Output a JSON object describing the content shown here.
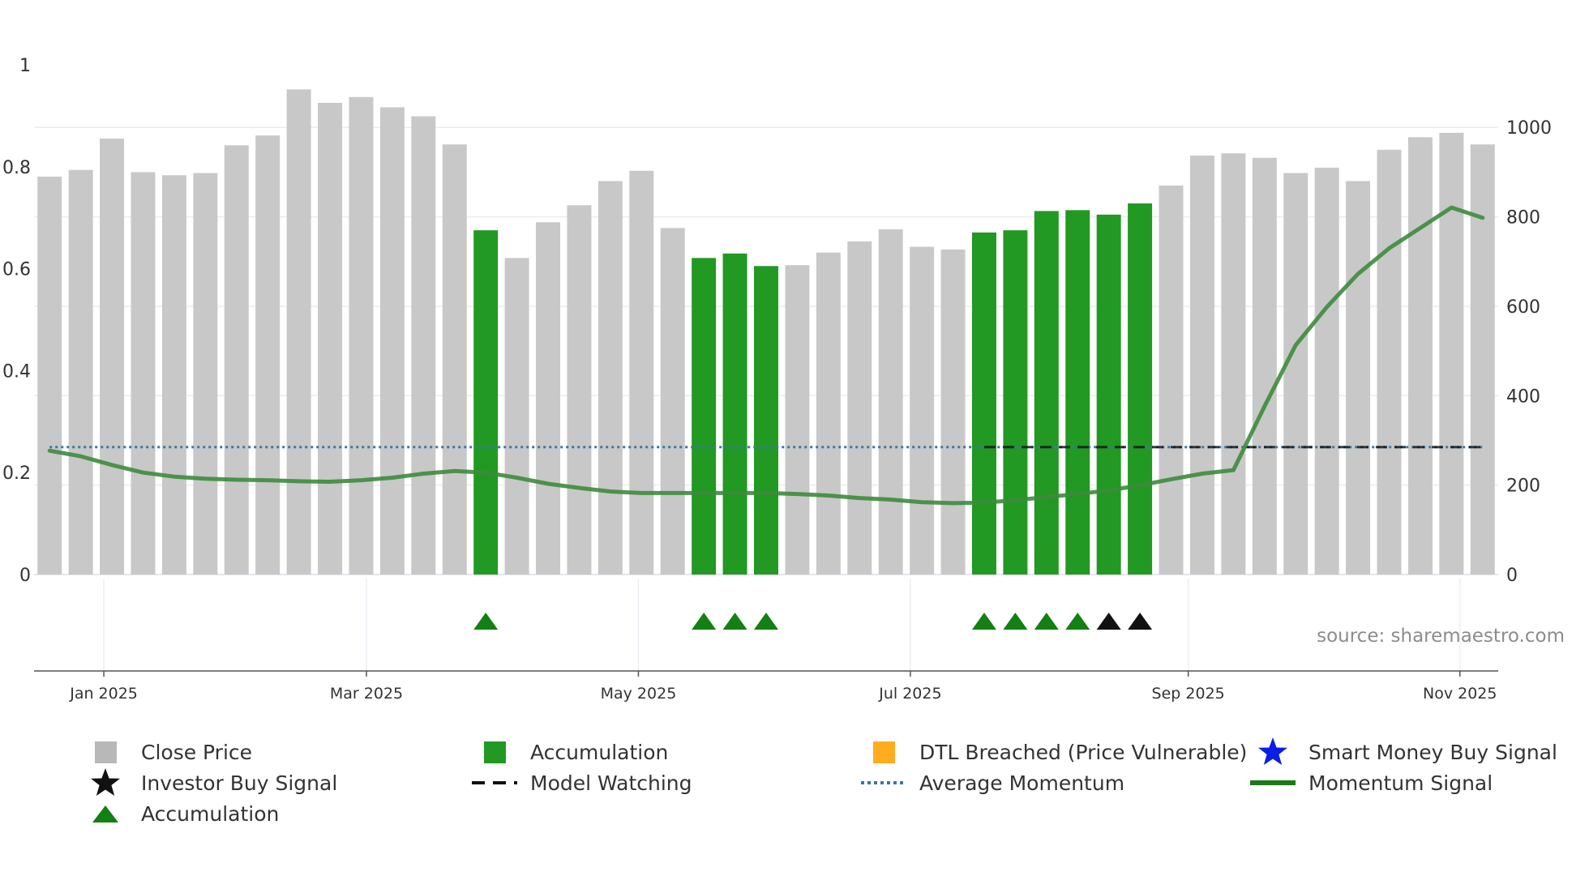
{
  "chart_data": {
    "type": "bar",
    "source_label": "source: sharemaestro.com",
    "left_axis": {
      "ticks": [
        0,
        0.2,
        0.4,
        0.6,
        0.8,
        1
      ],
      "tick_labels": [
        "0",
        "0.2",
        "0.4",
        "0.6",
        "0.8",
        "1"
      ],
      "range": [
        0,
        1
      ]
    },
    "right_axis": {
      "ticks": [
        0,
        200,
        400,
        600,
        800,
        1000
      ],
      "tick_labels": [
        "0",
        "200",
        "400",
        "600",
        "800",
        "1000"
      ],
      "range": [
        0,
        1140
      ]
    },
    "x_axis": {
      "tick_labels": [
        "Jan 2025",
        "Mar 2025",
        "May 2025",
        "Jul 2025",
        "Sep 2025",
        "Nov 2025"
      ],
      "tick_weeks": [
        1.74,
        10.17,
        18.9,
        27.63,
        36.55,
        45.27
      ],
      "week_range": [
        -0.5,
        46.5
      ]
    },
    "bars": {
      "values": [
        890,
        905,
        975,
        900,
        893,
        898,
        960,
        982,
        1085,
        1055,
        1068,
        1045,
        1025,
        962,
        770,
        708,
        788,
        826,
        880,
        903,
        775,
        708,
        718,
        690,
        692,
        720,
        745,
        772,
        733,
        727,
        765,
        770,
        813,
        815,
        805,
        830,
        870,
        937,
        942,
        932,
        898,
        910,
        880,
        950,
        978,
        988,
        962
      ],
      "accumulation": [
        0,
        0,
        0,
        0,
        0,
        0,
        0,
        0,
        0,
        0,
        0,
        0,
        0,
        0,
        1,
        0,
        0,
        0,
        0,
        0,
        0,
        1,
        1,
        1,
        0,
        0,
        0,
        0,
        0,
        0,
        1,
        1,
        1,
        1,
        1,
        1,
        0,
        0,
        0,
        0,
        0,
        0,
        0,
        0,
        0,
        0,
        0
      ],
      "colors": {
        "normal": "#c8c8c8",
        "accumulation": "#229922"
      }
    },
    "momentum_signal": {
      "values": [
        0.243,
        0.232,
        0.215,
        0.2,
        0.192,
        0.188,
        0.186,
        0.185,
        0.183,
        0.182,
        0.185,
        0.19,
        0.198,
        0.203,
        0.2,
        0.19,
        0.178,
        0.17,
        0.163,
        0.16,
        0.16,
        0.16,
        0.16,
        0.16,
        0.158,
        0.155,
        0.15,
        0.147,
        0.142,
        0.14,
        0.141,
        0.146,
        0.152,
        0.158,
        0.165,
        0.175,
        0.187,
        0.198,
        0.205,
        0.33,
        0.45,
        0.525,
        0.59,
        0.64,
        0.68,
        0.72,
        0.7
      ],
      "color": "#3d8b3d"
    },
    "average_momentum": {
      "value": 0.25,
      "color": "#3a78a8"
    },
    "model_watching": {
      "start_week": 30,
      "end_week": 46,
      "color": "#111111"
    },
    "signals": {
      "accumulation_weeks": [
        14,
        21,
        22,
        23,
        30,
        31,
        32,
        33
      ],
      "investor_buy_weeks": [
        34,
        35
      ]
    },
    "legend": [
      {
        "symbol": "gray-square",
        "label": "Close Price"
      },
      {
        "symbol": "green-square",
        "label": "Accumulation"
      },
      {
        "symbol": "orange-square",
        "label": "DTL Breached (Price Vulnerable)"
      },
      {
        "symbol": "blue-star",
        "label": "Smart Money Buy Signal"
      },
      {
        "symbol": "black-star",
        "label": "Investor Buy Signal"
      },
      {
        "symbol": "black-dashes",
        "label": "Model Watching"
      },
      {
        "symbol": "blue-dots",
        "label": "Average Momentum"
      },
      {
        "symbol": "green-line",
        "label": "Momentum Signal"
      },
      {
        "symbol": "green-triangle",
        "label": "Accumulation"
      }
    ],
    "legend_colors": {
      "gray": "#b8b8b8",
      "green": "#229922",
      "orange": "#ffad1f",
      "blue_star": "#0a1ee6",
      "black": "#111111",
      "dots": "#3a78a8",
      "line": "#1a7a1a",
      "triangle": "#128012"
    }
  }
}
